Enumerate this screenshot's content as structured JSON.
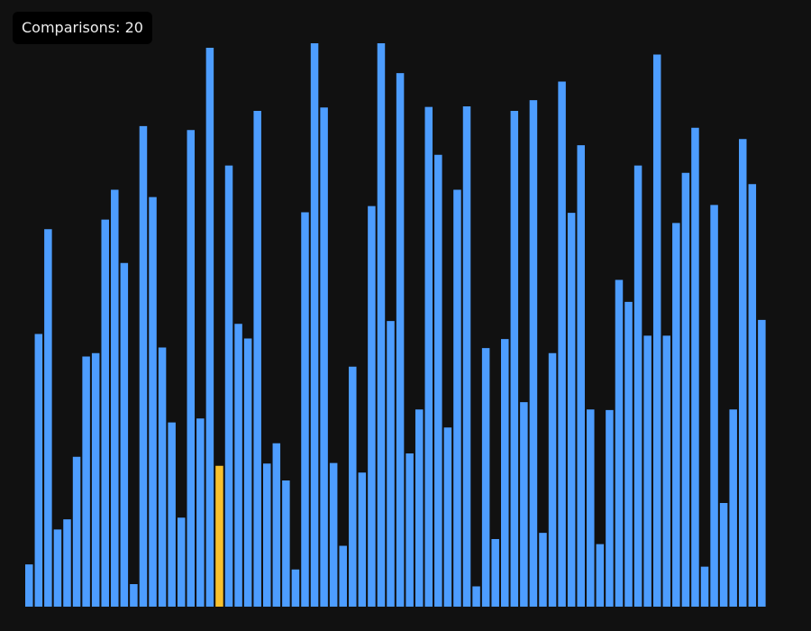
{
  "counter": {
    "label": "Comparisons:",
    "value": "20"
  },
  "colors": {
    "background": "#111111",
    "bar": "#4d9dff",
    "highlight": "#f7c12d",
    "badge_bg": "#000000",
    "badge_text": "#eeeeee"
  },
  "array": {
    "max_value": 100,
    "highlighted_index": [
      20
    ],
    "values": [
      7.5,
      48.4,
      67.0,
      13.7,
      15.5,
      26.6,
      44.4,
      45.0,
      68.7,
      74.0,
      61.0,
      4.0,
      85.3,
      72.7,
      46.0,
      32.7,
      15.8,
      84.6,
      33.4,
      99.2,
      25.0,
      78.3,
      50.2,
      47.6,
      88.0,
      25.4,
      29.0,
      22.4,
      6.6,
      70.0,
      100.0,
      88.6,
      25.5,
      10.8,
      42.6,
      23.8,
      71.1,
      100.0,
      50.7,
      94.7,
      27.2,
      35.0,
      88.7,
      80.2,
      31.8,
      74.0,
      88.8,
      3.6,
      45.9,
      12.0,
      47.5,
      88.0,
      36.3,
      89.9,
      13.1,
      45.0,
      93.2,
      69.9,
      81.9,
      35.0,
      11.1,
      34.9,
      58.0,
      54.1,
      78.3,
      48.1,
      98.0,
      48.1,
      68.1,
      77.0,
      85.0,
      7.1,
      71.3,
      18.4,
      35.0,
      83.0,
      75.0,
      50.9
    ]
  }
}
